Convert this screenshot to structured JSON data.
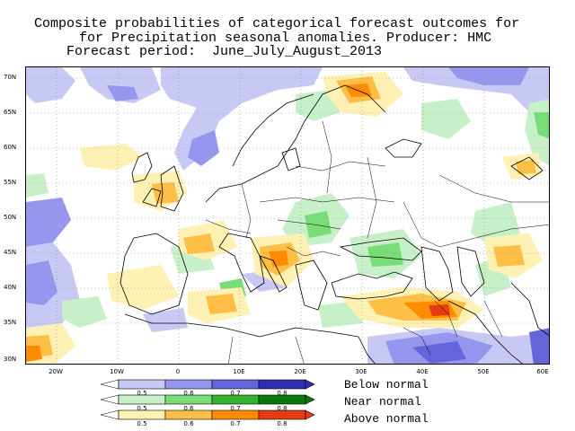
{
  "title": {
    "line1": "Composite probabilities of categorical forecast outcomes for",
    "line2": "for Precipitation seasonal anomalies. Producer: HMC",
    "line3": "Forecast period:  June_July_August_2013"
  },
  "map": {
    "lat_labels": [
      "70N",
      "65N",
      "60N",
      "55N",
      "50N",
      "45N",
      "40N",
      "35N",
      "30N"
    ],
    "lon_labels": [
      "20W",
      "10W",
      "0",
      "10E",
      "20E",
      "30E",
      "40E",
      "50E",
      "60E"
    ],
    "lat_range": [
      29.5,
      72
    ],
    "lon_range": [
      -25,
      60
    ]
  },
  "legend": {
    "below": {
      "label": "Below normal",
      "colors": [
        "#c8c8f5",
        "#9696ee",
        "#6464dc",
        "#2d2db4"
      ],
      "ticks": [
        "0.5",
        "0.6",
        "0.7",
        "0.8"
      ]
    },
    "near": {
      "label": "Near normal",
      "colors": [
        "#c8f0c8",
        "#78dc78",
        "#32b432",
        "#0a780a"
      ],
      "ticks": [
        "0.5",
        "0.6",
        "0.7",
        "0.8"
      ]
    },
    "above": {
      "label": "Above normal",
      "colors": [
        "#fff0b4",
        "#ffbe46",
        "#ff8c00",
        "#e63c14"
      ],
      "ticks": [
        "0.5",
        "0.6",
        "0.7",
        "0.8"
      ]
    }
  }
}
